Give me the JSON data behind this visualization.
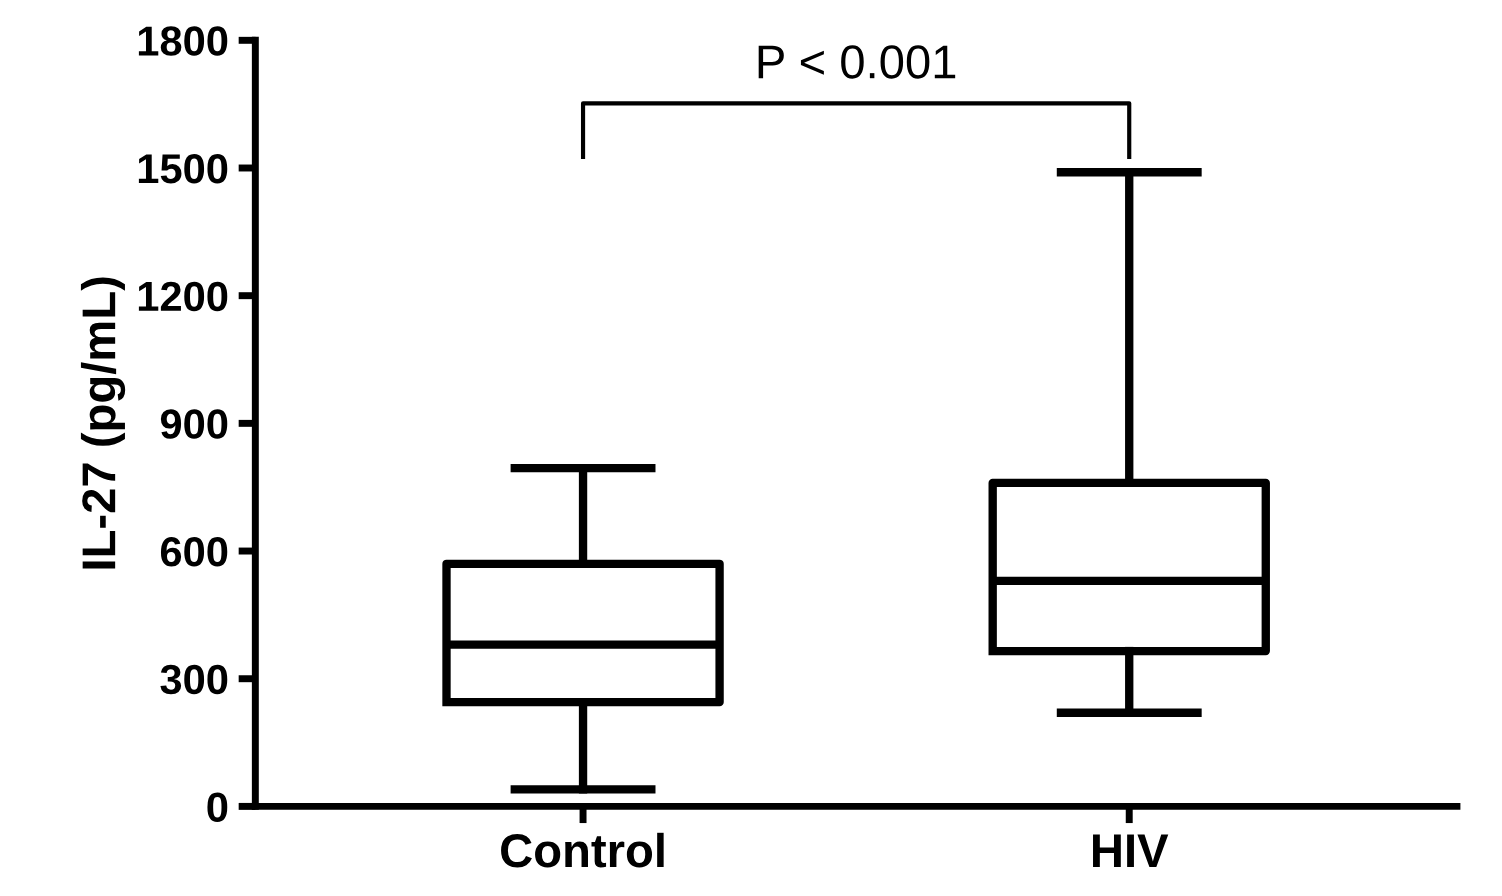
{
  "chart_data": {
    "type": "box",
    "categories": [
      "Control",
      "HIV"
    ],
    "ylabel": "IL-27 (pg/mL)",
    "ylim": [
      0,
      1800
    ],
    "yticks": [
      0,
      300,
      600,
      900,
      1200,
      1500,
      1800
    ],
    "grid": false,
    "boxes": [
      {
        "low": 40,
        "q1": 245,
        "median": 380,
        "q3": 570,
        "high": 795
      },
      {
        "low": 220,
        "q1": 365,
        "median": 530,
        "q3": 760,
        "high": 1490
      }
    ],
    "annotations": [
      "P < 0.001"
    ]
  }
}
